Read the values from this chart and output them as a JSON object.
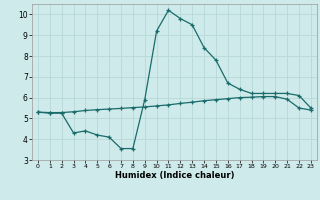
{
  "xlabel": "Humidex (Indice chaleur)",
  "background_color": "#ceeaea",
  "grid_color": "#b8d8d8",
  "line_color": "#1a6b6b",
  "x_line1": [
    0,
    1,
    2,
    3,
    4,
    5,
    6,
    7,
    8,
    9,
    10,
    11,
    12,
    13,
    14,
    15,
    16,
    17,
    18,
    19,
    20,
    21,
    22,
    23
  ],
  "y_line1": [
    5.3,
    5.25,
    5.25,
    4.3,
    4.4,
    4.2,
    4.1,
    3.55,
    3.55,
    5.9,
    9.2,
    10.2,
    9.8,
    9.5,
    8.4,
    7.8,
    6.7,
    6.4,
    6.2,
    6.2,
    6.2,
    6.2,
    6.1,
    5.5
  ],
  "x_line2": [
    0,
    1,
    2,
    3,
    4,
    5,
    6,
    7,
    8,
    9,
    10,
    11,
    12,
    13,
    14,
    15,
    16,
    17,
    18,
    19,
    20,
    21,
    22,
    23
  ],
  "y_line2": [
    5.3,
    5.28,
    5.28,
    5.32,
    5.38,
    5.42,
    5.45,
    5.48,
    5.52,
    5.55,
    5.6,
    5.65,
    5.72,
    5.78,
    5.85,
    5.9,
    5.95,
    6.0,
    6.02,
    6.05,
    6.05,
    5.92,
    5.5,
    5.4
  ],
  "xlim": [
    -0.5,
    23.5
  ],
  "ylim": [
    3,
    10.5
  ],
  "yticks": [
    3,
    4,
    5,
    6,
    7,
    8,
    9,
    10
  ],
  "xticks": [
    0,
    1,
    2,
    3,
    4,
    5,
    6,
    7,
    8,
    9,
    10,
    11,
    12,
    13,
    14,
    15,
    16,
    17,
    18,
    19,
    20,
    21,
    22,
    23
  ]
}
